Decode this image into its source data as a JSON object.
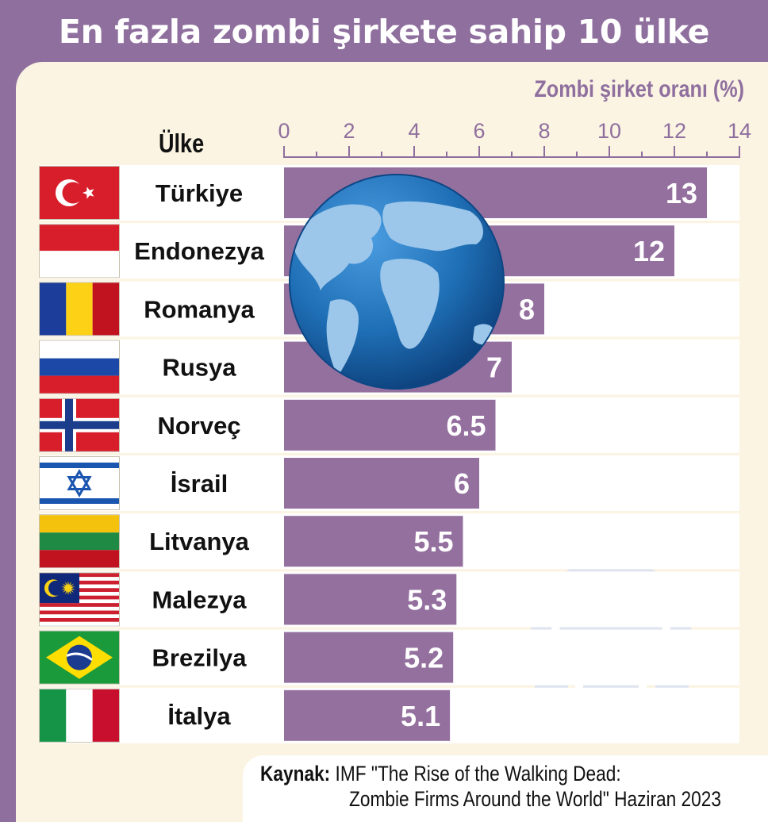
{
  "title": "En fazla zombi şirkete sahip 10 ülke",
  "column_header": "Ülke",
  "source": {
    "label": "Kaynak:",
    "line1": "IMF \"The Rise of the Walking Dead:",
    "line2": "Zombie Firms Around the World\" Haziran 2023"
  },
  "colors": {
    "background": "#8f6f9e",
    "panel": "#fbf4e3",
    "bar": "#94709f",
    "bar_track": "#ffffff",
    "axis": "#8f6f9e",
    "globe_ocean": "#1f72b8",
    "globe_land": "#9cc6ea",
    "watermark": "#dfe4ef"
  },
  "icons": [
    "globe-icon",
    "zombie-skull-gear-icon"
  ],
  "chart_data": {
    "type": "bar",
    "orientation": "horizontal",
    "title": "En fazla zombi şirkete sahip 10 ülke",
    "xlabel": "Zombi şirket oranı (%)",
    "ylabel": "Ülke",
    "xlim": [
      0,
      14
    ],
    "xticks": [
      0,
      2,
      4,
      6,
      8,
      10,
      12,
      14
    ],
    "grid": false,
    "categories": [
      "Türkiye",
      "Endonezya",
      "Romanya",
      "Rusya",
      "Norveç",
      "İsrail",
      "Litvanya",
      "Malezya",
      "Brezilya",
      "İtalya"
    ],
    "values": [
      13,
      12,
      8,
      7,
      6.5,
      6,
      5.5,
      5.3,
      5.2,
      5.1
    ],
    "value_labels": [
      "13",
      "12",
      "8",
      "7",
      "6.5",
      "6",
      "5.5",
      "5.3",
      "5.2",
      "5.1"
    ],
    "flags": [
      "turkey-flag-icon",
      "indonesia-flag-icon",
      "romania-flag-icon",
      "russia-flag-icon",
      "norway-flag-icon",
      "israel-flag-icon",
      "lithuania-flag-icon",
      "malaysia-flag-icon",
      "brazil-flag-icon",
      "italy-flag-icon"
    ]
  }
}
